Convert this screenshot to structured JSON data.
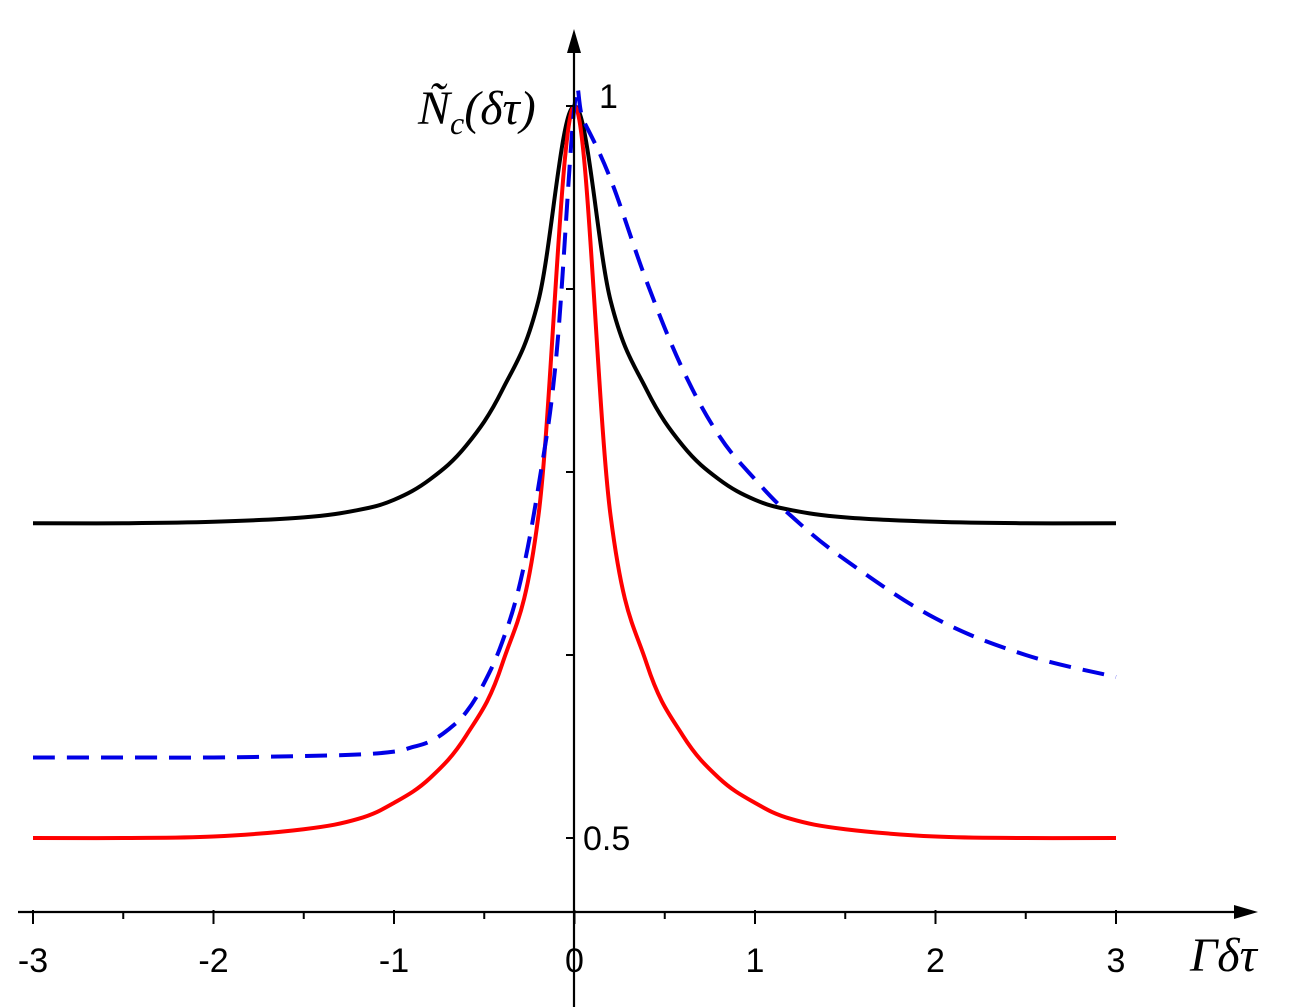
{
  "chart_data": {
    "type": "line",
    "title": "",
    "xlabel": "Γδτ",
    "ylabel": "Ñ_c(δτ)",
    "ylabel_parts": {
      "main": "Ñ",
      "sub": "c",
      "arg": "(δτ)"
    },
    "xlim": [
      -3,
      3
    ],
    "ylim": [
      0.5,
      1
    ],
    "x_ticks": [
      -3,
      -2,
      -1,
      0,
      1,
      2,
      3
    ],
    "x_tick_labels": [
      "-3",
      "-2",
      "-1",
      "0",
      "1",
      "2",
      "3"
    ],
    "x_minor_ticks": [
      -2.5,
      -1.5,
      -0.5,
      0.5,
      1.5,
      2.5
    ],
    "y_ticks": [
      0.5,
      0.625,
      0.75,
      0.875,
      1
    ],
    "y_tick_labels": [
      "0.5",
      "",
      "",
      "",
      "1"
    ],
    "grid": false,
    "legend": "none",
    "series": [
      {
        "color": "#000000",
        "dash": "solid",
        "x": [
          -3,
          -2.5,
          -2,
          -1.5,
          -1.2,
          -1,
          -0.8,
          -0.6,
          -0.4,
          -0.2,
          0,
          0.2,
          0.4,
          0.6,
          0.8,
          1,
          1.2,
          1.5,
          2,
          2.5,
          3
        ],
        "y": [
          0.715,
          0.715,
          0.716,
          0.719,
          0.724,
          0.731,
          0.745,
          0.768,
          0.806,
          0.867,
          1,
          0.867,
          0.806,
          0.768,
          0.745,
          0.731,
          0.724,
          0.719,
          0.716,
          0.715,
          0.715
        ]
      },
      {
        "color": "#ff0000",
        "dash": "solid",
        "x": [
          -3,
          -2.5,
          -2,
          -1.5,
          -1.2,
          -1,
          -0.8,
          -0.6,
          -0.4,
          -0.2,
          0,
          0.2,
          0.4,
          0.6,
          0.8,
          1,
          1.2,
          1.5,
          2,
          2.5,
          3
        ],
        "y": [
          0.5,
          0.5,
          0.501,
          0.506,
          0.513,
          0.524,
          0.541,
          0.57,
          0.619,
          0.72,
          1,
          0.72,
          0.619,
          0.57,
          0.541,
          0.524,
          0.513,
          0.506,
          0.501,
          0.5,
          0.5
        ]
      },
      {
        "color": "#0000e6",
        "dash": "dashed",
        "x": [
          -3,
          -2.5,
          -2,
          -1.5,
          -1.2,
          -1,
          -0.9,
          -0.8,
          -0.7,
          -0.6,
          -0.5,
          -0.4,
          -0.3,
          -0.2,
          -0.1,
          0,
          0.05,
          0.2,
          0.4,
          0.6,
          0.8,
          1,
          1.2,
          1.5,
          2,
          2.5,
          3
        ],
        "y": [
          0.555,
          0.555,
          0.555,
          0.556,
          0.557,
          0.559,
          0.562,
          0.566,
          0.574,
          0.586,
          0.606,
          0.634,
          0.675,
          0.74,
          0.83,
          1,
          0.99,
          0.95,
          0.88,
          0.82,
          0.775,
          0.745,
          0.72,
          0.69,
          0.65,
          0.625,
          0.61
        ]
      }
    ]
  }
}
